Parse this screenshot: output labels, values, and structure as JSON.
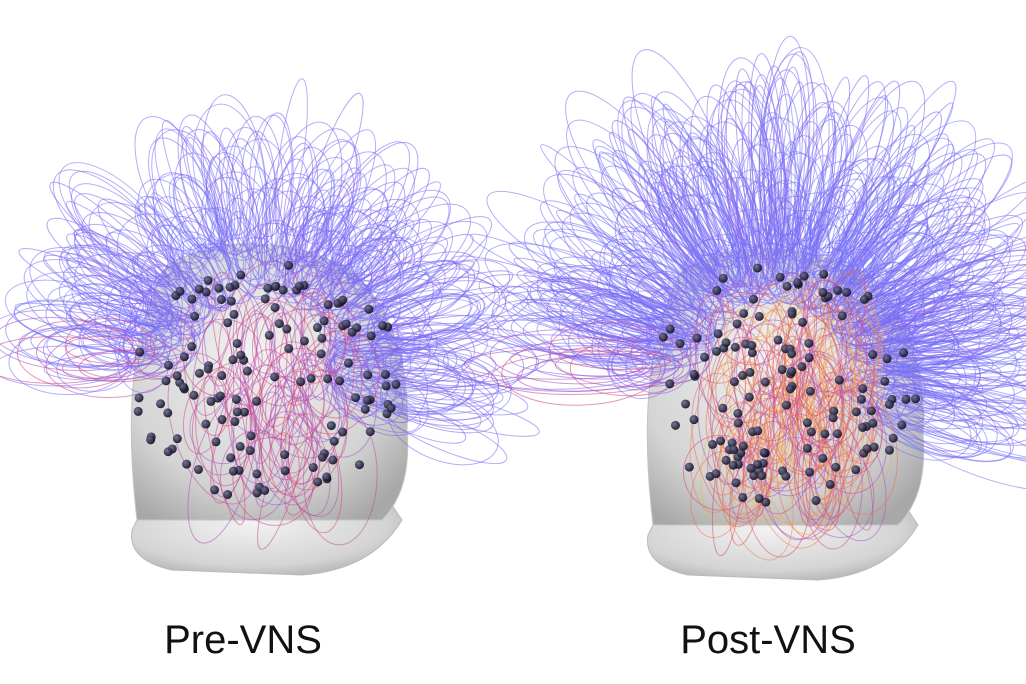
{
  "panels": [
    {
      "label": "Pre-VNS"
    },
    {
      "label": "Post-VNS"
    }
  ]
}
